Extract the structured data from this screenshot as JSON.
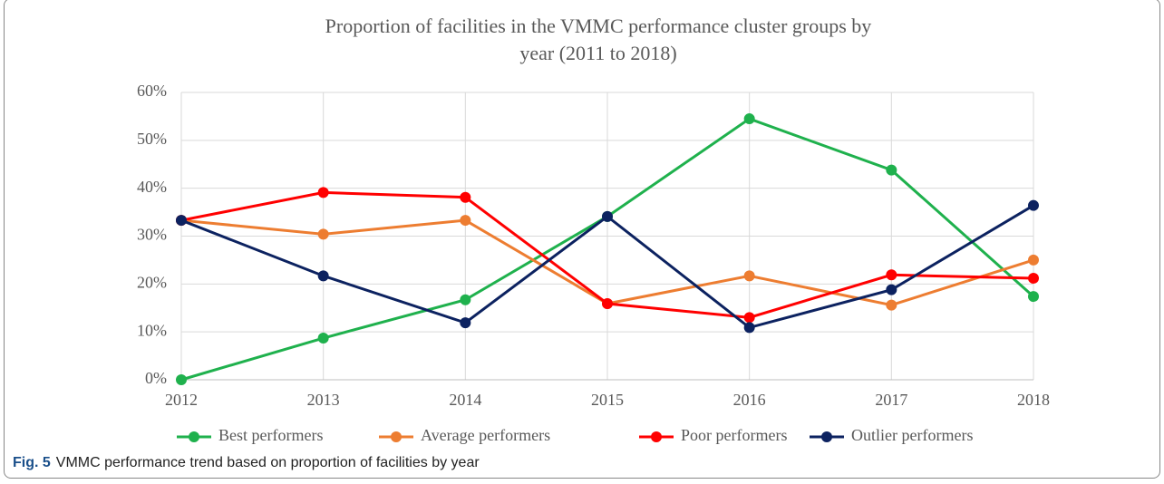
{
  "chart_data": {
    "type": "line",
    "title": "Proportion of facilities in the VMMC performance cluster groups by year  (2011 to 2018)",
    "categories": [
      "2012",
      "2013",
      "2014",
      "2015",
      "2016",
      "2017",
      "2018"
    ],
    "series": [
      {
        "name": "Best performers",
        "color": "#1fb14d",
        "values": [
          0,
          8.7,
          16.7,
          34.1,
          54.5,
          43.8,
          17.4
        ]
      },
      {
        "name": "Average performers",
        "color": "#ed7d31",
        "values": [
          33.3,
          30.4,
          33.3,
          15.9,
          21.7,
          15.6,
          25
        ]
      },
      {
        "name": "Poor performers",
        "color": "#ff0000",
        "values": [
          33.3,
          39.1,
          38.1,
          15.9,
          13.0,
          21.9,
          21.2
        ]
      },
      {
        "name": "Outlier performers",
        "color": "#0c2260",
        "values": [
          33.3,
          21.7,
          11.9,
          34.1,
          10.9,
          18.8,
          36.4
        ]
      }
    ],
    "ylim": [
      0,
      60
    ],
    "yticks": [
      {
        "value": 0,
        "label": "0%"
      },
      {
        "value": 10,
        "label": "10%"
      },
      {
        "value": 20,
        "label": "20%"
      },
      {
        "value": 30,
        "label": "30%"
      },
      {
        "value": 40,
        "label": "40%"
      },
      {
        "value": 50,
        "label": "50%"
      },
      {
        "value": 60,
        "label": "60%"
      }
    ],
    "grid": true,
    "legend": "bottom"
  },
  "caption": {
    "label": "Fig. 5",
    "text": "VMMC performance trend based on proportion of facilities by year"
  }
}
